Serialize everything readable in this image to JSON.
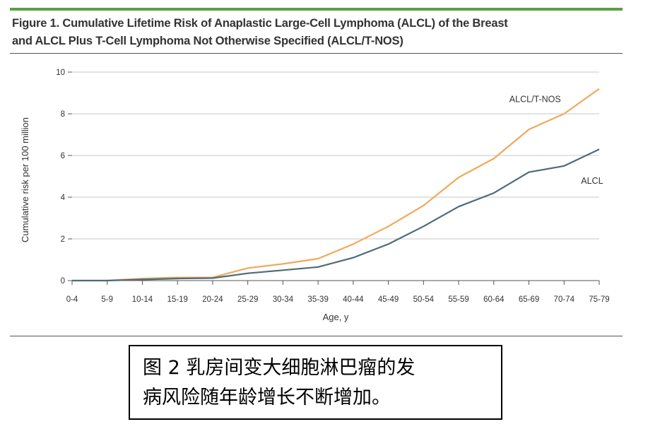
{
  "figure": {
    "title_line1": "Figure 1. Cumulative Lifetime Risk of Anaplastic Large-Cell Lymphoma (ALCL) of the Breast",
    "title_line2": "and ALCL Plus T-Cell Lymphoma Not Otherwise Specified (ALCL/T-NOS)",
    "rule_color": "#5aa043"
  },
  "caption": {
    "line1": "图 2 乳房间变大细胞淋巴瘤的发",
    "line2": "病风险随年龄增长不断增加。"
  },
  "chart_data": {
    "type": "line",
    "xlabel": "Age, y",
    "ylabel": "Cumulative risk per 100 million",
    "ylim": [
      0,
      10
    ],
    "yticks": [
      0,
      2,
      4,
      6,
      8,
      10
    ],
    "grid": true,
    "categories": [
      "0-4",
      "5-9",
      "10-14",
      "15-19",
      "20-24",
      "25-29",
      "30-34",
      "35-39",
      "40-44",
      "45-49",
      "50-54",
      "55-59",
      "60-64",
      "65-69",
      "70-74",
      "75-79"
    ],
    "series": [
      {
        "name": "ALCL/T-NOS",
        "color": "#f0a95a",
        "values": [
          0,
          0,
          0.1,
          0.15,
          0.15,
          0.6,
          0.8,
          1.05,
          1.75,
          2.6,
          3.6,
          4.95,
          5.85,
          7.25,
          8.0,
          9.2
        ]
      },
      {
        "name": "ALCL",
        "color": "#4f6b78",
        "values": [
          0,
          0,
          0.05,
          0.1,
          0.12,
          0.35,
          0.5,
          0.65,
          1.1,
          1.75,
          2.6,
          3.55,
          4.2,
          5.2,
          5.5,
          6.3
        ]
      }
    ]
  }
}
